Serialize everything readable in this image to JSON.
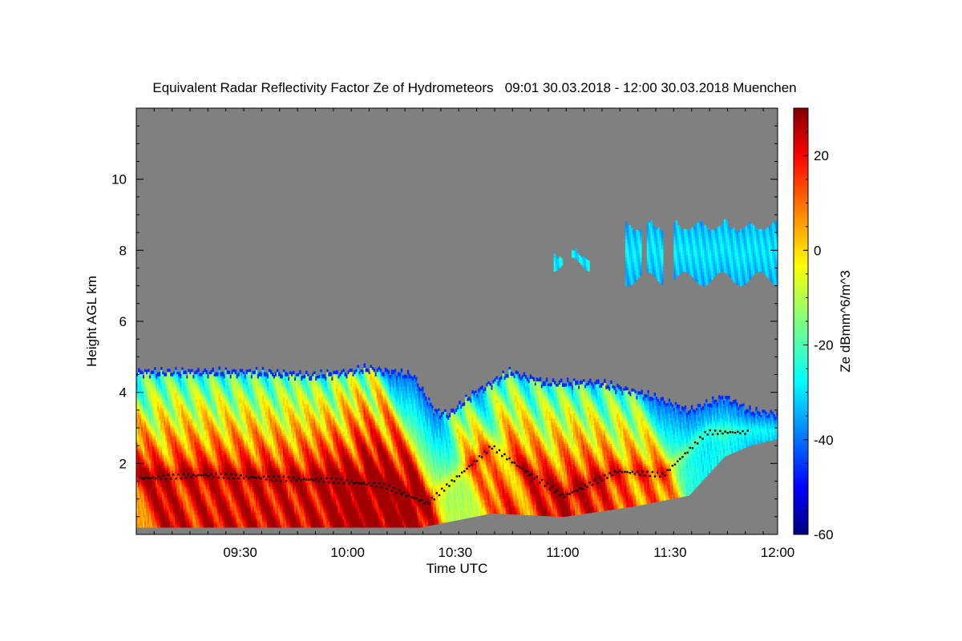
{
  "chart_data": {
    "type": "heatmap",
    "title": "Equivalent Radar Reflectivity Factor Ze of Hydrometeors   09:01 30.03.2018 - 12:00 30.03.2018 Muenchen",
    "xlabel": "Time UTC",
    "ylabel": "Height AGL km",
    "colorbar_label": "Ze dBmm^6/m^3",
    "x_range_minutes": [
      541,
      720
    ],
    "y_range_km": [
      0,
      12
    ],
    "x_tick_labels": [
      "09:30",
      "10:00",
      "10:30",
      "11:00",
      "11:30",
      "12:00"
    ],
    "x_tick_minutes": [
      570,
      600,
      630,
      660,
      690,
      720
    ],
    "y_tick_labels": [
      "2",
      "4",
      "6",
      "8",
      "10"
    ],
    "y_tick_values": [
      2,
      4,
      6,
      8,
      10
    ],
    "colorbar_range": [
      -60,
      30
    ],
    "colorbar_tick_labels": [
      "-60",
      "-40",
      "-20",
      "0",
      "20"
    ],
    "colorbar_tick_values": [
      -60,
      -40,
      -20,
      0,
      20
    ],
    "background_color": "#808080",
    "low_cloud": {
      "top_height_km": [
        [
          541,
          4.6
        ],
        [
          560,
          4.6
        ],
        [
          575,
          4.6
        ],
        [
          590,
          4.5
        ],
        [
          600,
          4.6
        ],
        [
          605,
          4.7
        ],
        [
          612,
          4.6
        ],
        [
          618,
          4.5
        ],
        [
          624,
          3.5
        ],
        [
          628,
          3.4
        ],
        [
          635,
          4.0
        ],
        [
          645,
          4.6
        ],
        [
          655,
          4.3
        ],
        [
          670,
          4.3
        ],
        [
          685,
          3.9
        ],
        [
          695,
          3.5
        ],
        [
          705,
          3.9
        ],
        [
          712,
          3.5
        ],
        [
          720,
          3.4
        ]
      ],
      "base_height_km": [
        [
          541,
          0.2
        ],
        [
          620,
          0.2
        ],
        [
          640,
          0.6
        ],
        [
          660,
          0.5
        ],
        [
          680,
          0.8
        ],
        [
          695,
          1.1
        ],
        [
          705,
          2.2
        ],
        [
          712,
          2.5
        ],
        [
          720,
          2.7
        ]
      ],
      "peak_dbz": 22,
      "fall_streak_times_minutes": [
        545,
        550,
        557,
        563,
        569,
        575,
        581,
        587,
        593,
        598,
        603,
        609,
        614,
        620,
        638,
        643,
        652,
        658,
        665,
        671,
        677,
        684,
        690
      ]
    },
    "high_cloud": {
      "time_range_minutes": [
        653,
        720
      ],
      "height_range_km": [
        7.2,
        8.8
      ],
      "typical_dbz": -28
    },
    "melting_layer_height_km": [
      [
        541,
        1.6
      ],
      [
        560,
        1.7
      ],
      [
        580,
        1.6
      ],
      [
        595,
        1.55
      ],
      [
        610,
        1.4
      ],
      [
        622,
        0.9
      ],
      [
        640,
        2.5
      ],
      [
        648,
        1.9
      ],
      [
        660,
        1.1
      ],
      [
        675,
        1.8
      ],
      [
        688,
        1.7
      ],
      [
        700,
        2.9
      ],
      [
        712,
        2.9
      ]
    ]
  }
}
